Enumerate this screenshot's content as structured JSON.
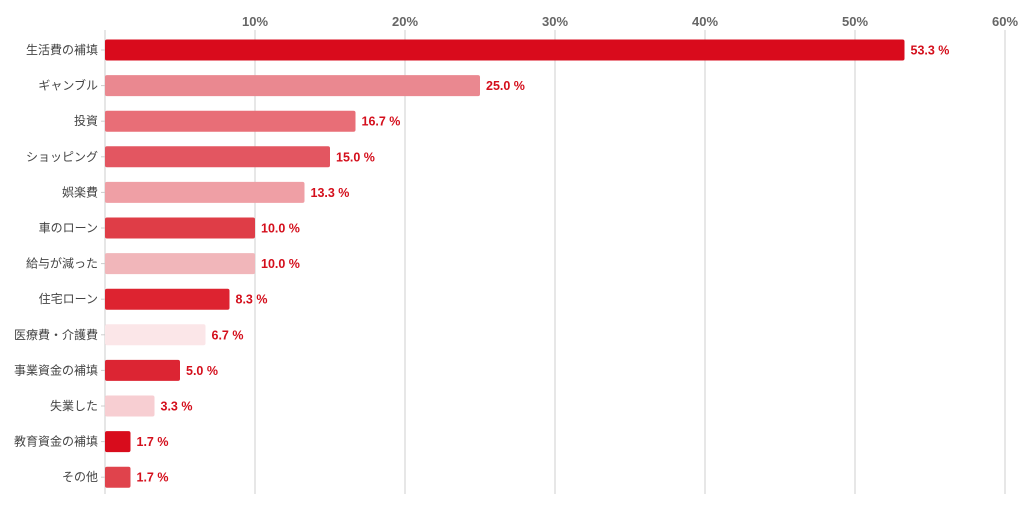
{
  "chart_data": {
    "type": "bar",
    "orientation": "horizontal",
    "title": "",
    "xlabel": "",
    "ylabel": "",
    "xlim": [
      0,
      60
    ],
    "x_ticks": [
      {
        "value": 10,
        "label": "10%"
      },
      {
        "value": 20,
        "label": "20%"
      },
      {
        "value": 30,
        "label": "30%"
      },
      {
        "value": 40,
        "label": "40%"
      },
      {
        "value": 50,
        "label": "50%"
      },
      {
        "value": 60,
        "label": "60%"
      }
    ],
    "grid": true,
    "legend": "none",
    "value_suffix": " %",
    "categories": [
      "生活費の補填",
      "ギャンブル",
      "投資",
      "ショッピング",
      "娯楽費",
      "車のローン",
      "給与が減った",
      "住宅ローン",
      "医療費・介護費",
      "事業資金の補填",
      "失業した",
      "教育資金の補填",
      "その他"
    ],
    "values": [
      53.3,
      25.0,
      16.7,
      15.0,
      13.3,
      10.0,
      10.0,
      8.3,
      6.7,
      5.0,
      3.3,
      1.7,
      1.7
    ],
    "colors": [
      "#d90b1c",
      "#ea8890",
      "#e86e77",
      "#e35661",
      "#ef9fa5",
      "#df3d47",
      "#f1b6ba",
      "#dd2330",
      "#fbe6e8",
      "#dc2533",
      "#f7ced2",
      "#d80c1c",
      "#e0434c"
    ],
    "value_label_color": "#d40f1c"
  }
}
